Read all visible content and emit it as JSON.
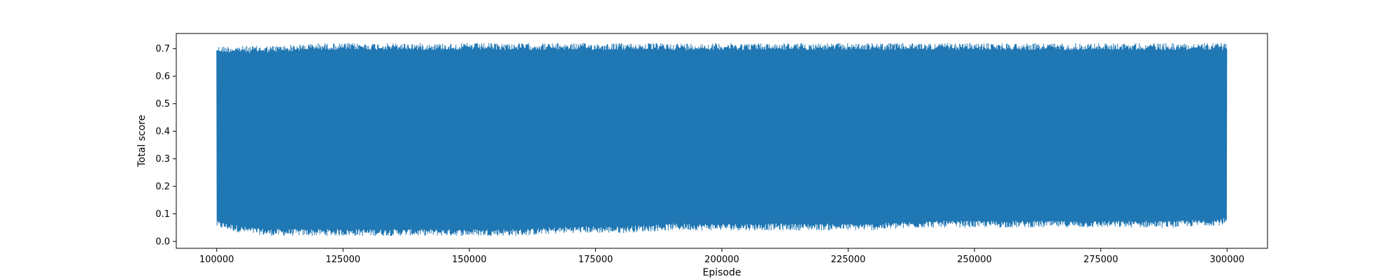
{
  "chart_data": {
    "type": "line",
    "xlabel": "Episode",
    "ylabel": "Total score",
    "xlim": [
      92000,
      308000
    ],
    "ylim": [
      -0.025,
      0.755
    ],
    "x_ticks": [
      100000,
      125000,
      150000,
      175000,
      200000,
      225000,
      250000,
      275000,
      300000
    ],
    "y_ticks": [
      0.0,
      0.1,
      0.2,
      0.3,
      0.4,
      0.5,
      0.6,
      0.7
    ],
    "grid": false,
    "series": [
      {
        "color": "#1f77b4",
        "x_range": [
          100000,
          300000
        ],
        "lower_envelope": [
          [
            100000,
            0.05
          ],
          [
            105000,
            0.03
          ],
          [
            110000,
            0.02
          ],
          [
            115000,
            0.02
          ],
          [
            120000,
            0.02
          ],
          [
            125000,
            0.02
          ],
          [
            130000,
            0.02
          ],
          [
            135000,
            0.02
          ],
          [
            140000,
            0.02
          ],
          [
            150000,
            0.02
          ],
          [
            160000,
            0.02
          ],
          [
            170000,
            0.03
          ],
          [
            180000,
            0.03
          ],
          [
            190000,
            0.04
          ],
          [
            200000,
            0.04
          ],
          [
            210000,
            0.04
          ],
          [
            220000,
            0.04
          ],
          [
            230000,
            0.04
          ],
          [
            240000,
            0.05
          ],
          [
            250000,
            0.05
          ],
          [
            260000,
            0.05
          ],
          [
            270000,
            0.05
          ],
          [
            280000,
            0.05
          ],
          [
            290000,
            0.05
          ],
          [
            300000,
            0.06
          ]
        ],
        "upper_envelope": [
          [
            100000,
            0.71
          ],
          [
            110000,
            0.71
          ],
          [
            120000,
            0.72
          ],
          [
            130000,
            0.72
          ],
          [
            140000,
            0.72
          ],
          [
            150000,
            0.72
          ],
          [
            160000,
            0.72
          ],
          [
            170000,
            0.72
          ],
          [
            180000,
            0.72
          ],
          [
            190000,
            0.72
          ],
          [
            200000,
            0.72
          ],
          [
            210000,
            0.72
          ],
          [
            220000,
            0.72
          ],
          [
            230000,
            0.72
          ],
          [
            240000,
            0.72
          ],
          [
            250000,
            0.72
          ],
          [
            260000,
            0.72
          ],
          [
            270000,
            0.72
          ],
          [
            280000,
            0.72
          ],
          [
            290000,
            0.72
          ],
          [
            300000,
            0.72
          ]
        ]
      }
    ]
  }
}
